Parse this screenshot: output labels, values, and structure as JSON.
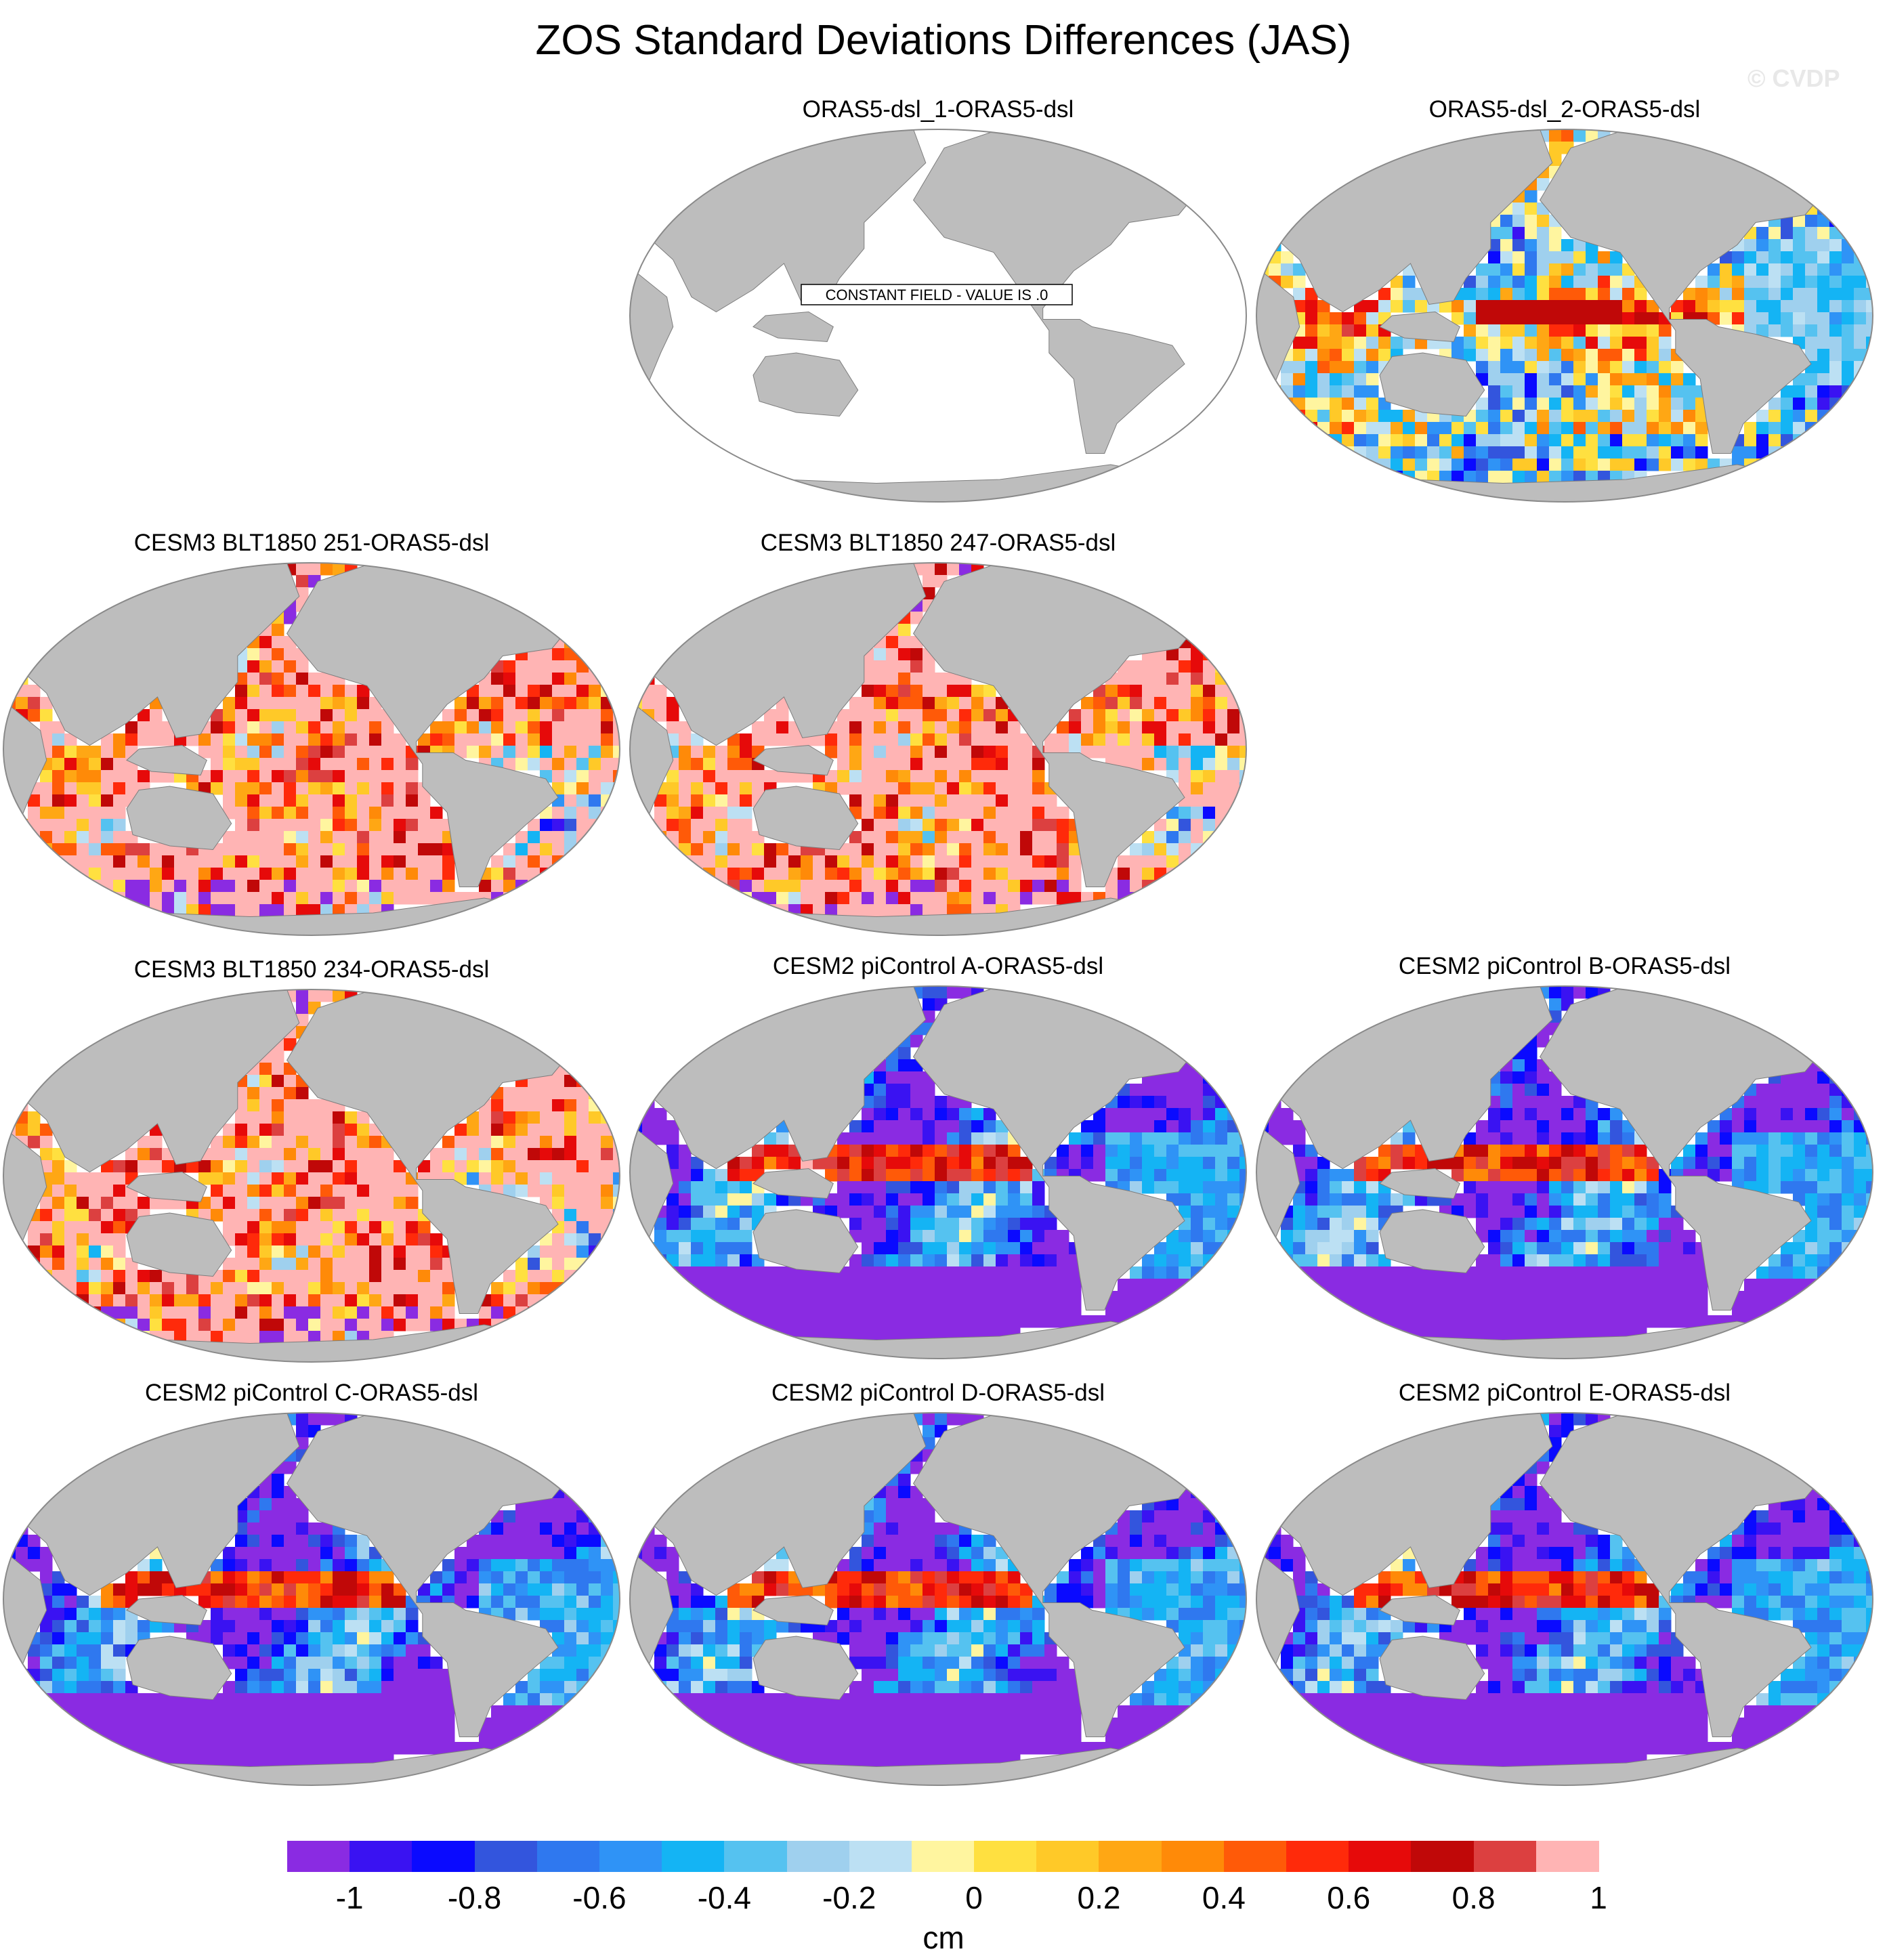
{
  "title": "ZOS Standard Deviations Differences (JAS)",
  "credit": "© CVDP",
  "colors": {
    "land": "#bdbdbd",
    "ocean_constant": "#ffffff",
    "outline": "#8a8a8a",
    "colorbar": [
      "#8a2be2",
      "#3a12f2",
      "#0a0aff",
      "#3355dd",
      "#2f78ef",
      "#2f93f6",
      "#14b4f4",
      "#55c2f0",
      "#9fd0ee",
      "#bce0f3",
      "#fff59f",
      "#ffe040",
      "#ffc928",
      "#ffa714",
      "#ff8a08",
      "#ff5a08",
      "#ff2a0a",
      "#e60a0a",
      "#c00808",
      "#dc4040",
      "#ffb4b4"
    ]
  },
  "colorbar": {
    "ticks": [
      "-1",
      "-0.8",
      "-0.6",
      "-0.4",
      "-0.2",
      "0",
      "0.2",
      "0.4",
      "0.6",
      "0.8",
      "1"
    ],
    "unit": "cm"
  },
  "panels": [
    {
      "id": "p1",
      "title": "ORAS5-dsl_1-ORAS5-dsl",
      "field": "constant",
      "label": "CONSTANT FIELD - VALUE IS .0"
    },
    {
      "id": "p2",
      "title": "ORAS5-dsl_2-ORAS5-dsl",
      "field": "mixed"
    },
    {
      "id": "p3",
      "title": "CESM3 BLT1850 251-ORAS5-dsl",
      "field": "positive"
    },
    {
      "id": "p4",
      "title": "CESM3 BLT1850 247-ORAS5-dsl",
      "field": "positive"
    },
    {
      "id": "p5",
      "title": "CESM3 BLT1850 234-ORAS5-dsl",
      "field": "positive"
    },
    {
      "id": "p6",
      "title": "CESM2 piControl A-ORAS5-dsl",
      "field": "negative"
    },
    {
      "id": "p7",
      "title": "CESM2 piControl B-ORAS5-dsl",
      "field": "negative"
    },
    {
      "id": "p8",
      "title": "CESM2 piControl C-ORAS5-dsl",
      "field": "negative"
    },
    {
      "id": "p9",
      "title": "CESM2 piControl D-ORAS5-dsl",
      "field": "negative"
    },
    {
      "id": "p10",
      "title": "CESM2 piControl E-ORAS5-dsl",
      "field": "negative"
    }
  ]
}
